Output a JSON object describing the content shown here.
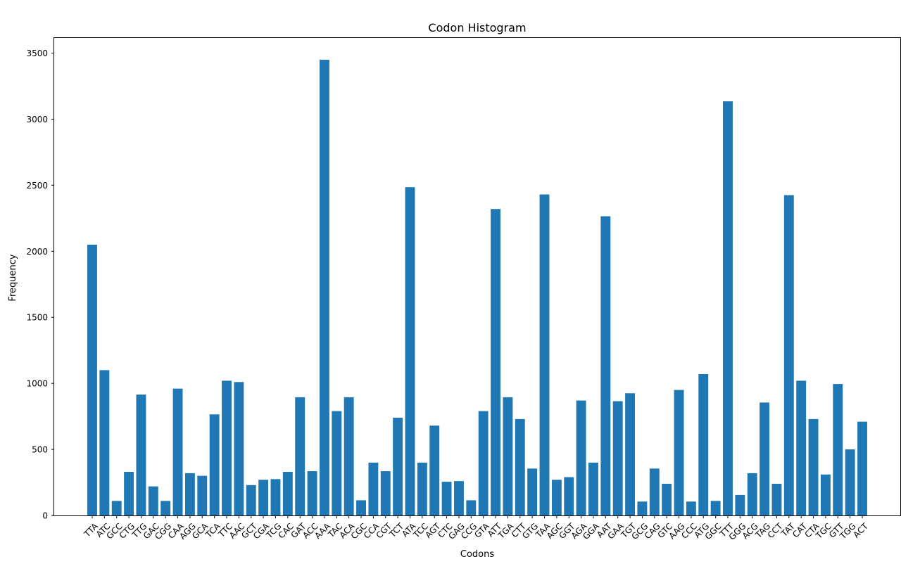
{
  "chart_data": {
    "type": "bar",
    "title": "Codon Histogram",
    "xlabel": "Codons",
    "ylabel": "Frequency",
    "ylim": [
      0,
      3620
    ],
    "yticks": [
      0,
      500,
      1000,
      1500,
      2000,
      2500,
      3000,
      3500
    ],
    "bar_color": "#1f77b4",
    "grid": false,
    "categories": [
      "TTA",
      "ATC",
      "GCC",
      "CTG",
      "TTG",
      "GAC",
      "CGG",
      "CAA",
      "AGG",
      "GCA",
      "TCA",
      "TTC",
      "AAC",
      "GCT",
      "CGA",
      "TCG",
      "CAC",
      "GAT",
      "ACC",
      "AAA",
      "TAC",
      "ACA",
      "CGC",
      "CCA",
      "CGT",
      "TCT",
      "ATA",
      "TCC",
      "AGT",
      "CTC",
      "GAG",
      "CCG",
      "GTA",
      "ATT",
      "TGA",
      "CTT",
      "GTG",
      "TAA",
      "AGC",
      "GGT",
      "AGA",
      "GGA",
      "AAT",
      "GAA",
      "TGT",
      "GCG",
      "CAG",
      "GTC",
      "AAG",
      "CCC",
      "ATG",
      "GGC",
      "TTT",
      "GGG",
      "ACG",
      "TAG",
      "CCT",
      "TAT",
      "CAT",
      "CTA",
      "TGC",
      "GTT",
      "TGG",
      "ACT"
    ],
    "values": [
      2050,
      1100,
      110,
      330,
      915,
      220,
      110,
      960,
      320,
      300,
      765,
      1020,
      1010,
      230,
      270,
      275,
      330,
      895,
      335,
      3450,
      790,
      895,
      115,
      400,
      335,
      740,
      2485,
      400,
      680,
      255,
      260,
      115,
      790,
      2320,
      895,
      730,
      355,
      2430,
      270,
      290,
      870,
      400,
      2265,
      865,
      925,
      105,
      355,
      240,
      950,
      105,
      1070,
      110,
      3135,
      155,
      320,
      855,
      240,
      2425,
      1020,
      730,
      310,
      995,
      500,
      710
    ]
  }
}
